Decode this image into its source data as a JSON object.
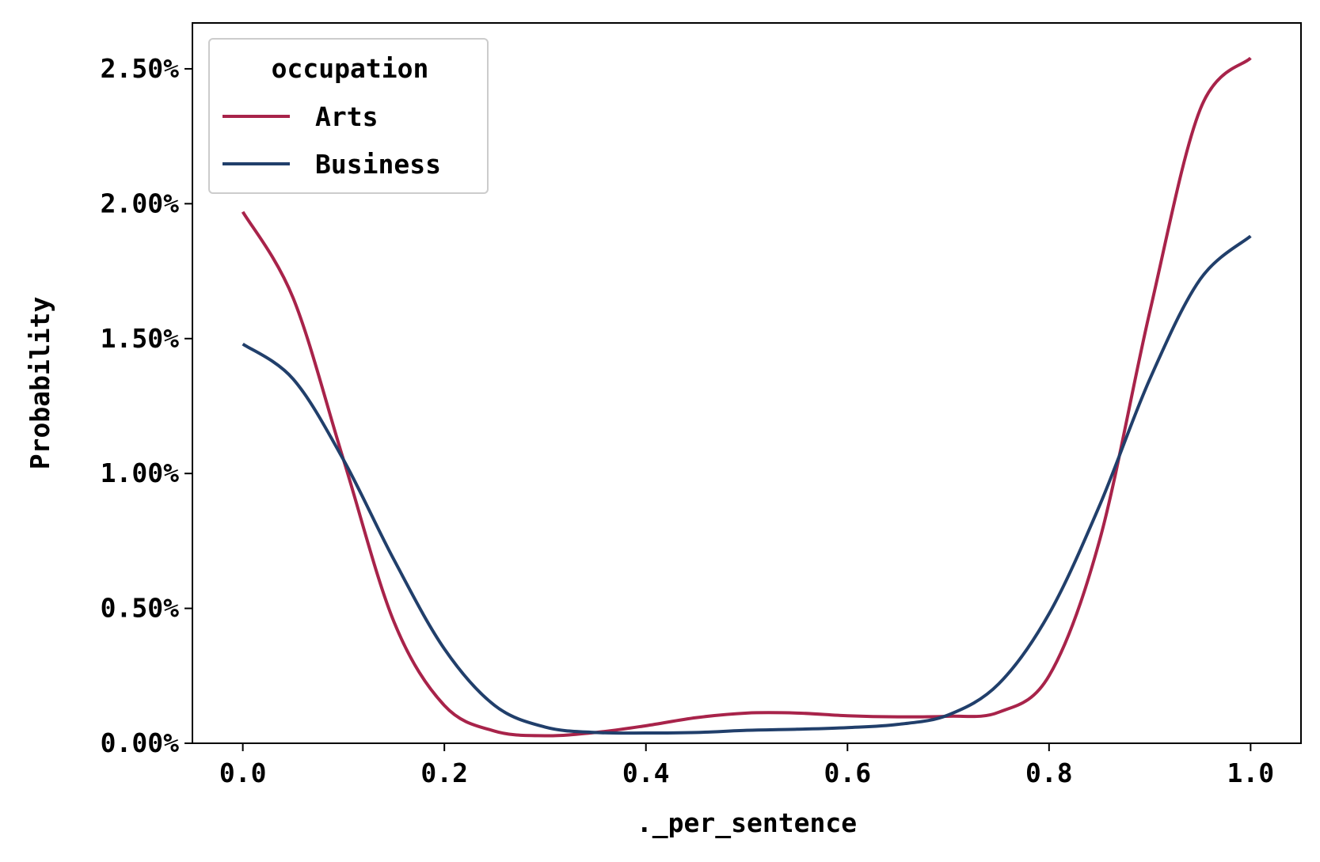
{
  "chart_data": {
    "type": "line",
    "title": "",
    "xlabel": "._per_sentence",
    "ylabel": "Probability",
    "xlim": [
      -0.05,
      1.05
    ],
    "ylim": [
      0,
      0.0267
    ],
    "xticks": [
      0.0,
      0.2,
      0.4,
      0.6,
      0.8,
      1.0
    ],
    "xtick_labels": [
      "0.0",
      "0.2",
      "0.4",
      "0.6",
      "0.8",
      "1.0"
    ],
    "yticks": [
      0,
      0.005,
      0.01,
      0.015,
      0.02,
      0.025
    ],
    "ytick_labels": [
      "0.00%",
      "0.50%",
      "1.00%",
      "1.50%",
      "2.00%",
      "2.50%"
    ],
    "grid": false,
    "legend": {
      "title": "occupation",
      "placement": "top-left"
    },
    "series": [
      {
        "name": "Arts",
        "color": "#a8234a",
        "x": [
          0.0,
          0.05,
          0.1,
          0.15,
          0.2,
          0.25,
          0.3,
          0.35,
          0.4,
          0.45,
          0.5,
          0.55,
          0.6,
          0.65,
          0.7,
          0.75,
          0.8,
          0.85,
          0.9,
          0.95,
          1.0
        ],
        "y": [
          0.0197,
          0.0165,
          0.0105,
          0.0045,
          0.0014,
          0.00045,
          0.00028,
          0.0004,
          0.00065,
          0.00095,
          0.00112,
          0.00112,
          0.00102,
          0.00098,
          0.001,
          0.00115,
          0.0025,
          0.0075,
          0.016,
          0.0235,
          0.0254
        ]
      },
      {
        "name": "Business",
        "color": "#213f6b",
        "x": [
          0.0,
          0.05,
          0.1,
          0.15,
          0.2,
          0.25,
          0.3,
          0.35,
          0.4,
          0.45,
          0.5,
          0.55,
          0.6,
          0.65,
          0.7,
          0.75,
          0.8,
          0.85,
          0.9,
          0.95,
          1.0
        ],
        "y": [
          0.0148,
          0.0135,
          0.0105,
          0.0068,
          0.0035,
          0.0014,
          0.0006,
          0.0004,
          0.00038,
          0.0004,
          0.00048,
          0.00052,
          0.00058,
          0.0007,
          0.00105,
          0.0022,
          0.0048,
          0.0088,
          0.0135,
          0.0172,
          0.0188
        ]
      }
    ]
  }
}
